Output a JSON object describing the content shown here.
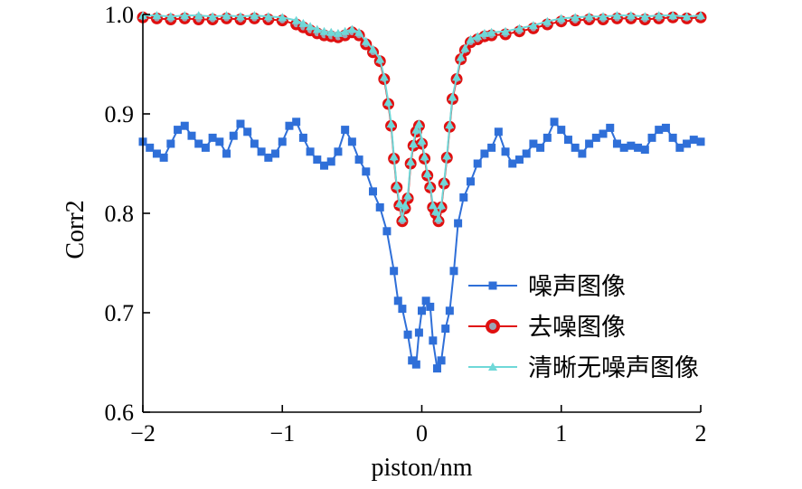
{
  "chart_data": {
    "type": "line",
    "xlabel": "piston/nm",
    "ylabel": "Corr2",
    "xlim": [
      -2,
      2
    ],
    "ylim": [
      0.6,
      1.0
    ],
    "xticks": [
      -2,
      -1,
      0,
      1,
      2
    ],
    "xtick_labels": [
      "−2",
      "−1",
      "0",
      "1",
      "2"
    ],
    "yticks": [
      0.6,
      0.7,
      0.8,
      0.9,
      1.0
    ],
    "ytick_labels": [
      "0.6",
      "0.7",
      "0.8",
      "0.9",
      "1.0"
    ],
    "grid": false,
    "legend_position": "lower-right",
    "series": [
      {
        "name": "噪声图像",
        "color": "#2f6fd8",
        "marker": "square",
        "points": [
          [
            -2.0,
            0.872
          ],
          [
            -1.95,
            0.866
          ],
          [
            -1.9,
            0.86
          ],
          [
            -1.85,
            0.856
          ],
          [
            -1.8,
            0.87
          ],
          [
            -1.75,
            0.884
          ],
          [
            -1.7,
            0.888
          ],
          [
            -1.65,
            0.878
          ],
          [
            -1.6,
            0.87
          ],
          [
            -1.55,
            0.866
          ],
          [
            -1.5,
            0.876
          ],
          [
            -1.45,
            0.872
          ],
          [
            -1.4,
            0.86
          ],
          [
            -1.35,
            0.878
          ],
          [
            -1.3,
            0.89
          ],
          [
            -1.25,
            0.882
          ],
          [
            -1.2,
            0.87
          ],
          [
            -1.15,
            0.862
          ],
          [
            -1.1,
            0.856
          ],
          [
            -1.05,
            0.86
          ],
          [
            -1.0,
            0.872
          ],
          [
            -0.95,
            0.888
          ],
          [
            -0.9,
            0.892
          ],
          [
            -0.85,
            0.876
          ],
          [
            -0.8,
            0.862
          ],
          [
            -0.75,
            0.854
          ],
          [
            -0.7,
            0.848
          ],
          [
            -0.65,
            0.852
          ],
          [
            -0.6,
            0.862
          ],
          [
            -0.55,
            0.884
          ],
          [
            -0.5,
            0.872
          ],
          [
            -0.45,
            0.854
          ],
          [
            -0.4,
            0.842
          ],
          [
            -0.35,
            0.822
          ],
          [
            -0.3,
            0.806
          ],
          [
            -0.25,
            0.782
          ],
          [
            -0.2,
            0.742
          ],
          [
            -0.17,
            0.712
          ],
          [
            -0.14,
            0.704
          ],
          [
            -0.1,
            0.678
          ],
          [
            -0.07,
            0.652
          ],
          [
            -0.04,
            0.648
          ],
          [
            -0.02,
            0.68
          ],
          [
            0.0,
            0.702
          ],
          [
            0.03,
            0.712
          ],
          [
            0.06,
            0.706
          ],
          [
            0.08,
            0.672
          ],
          [
            0.11,
            0.644
          ],
          [
            0.14,
            0.652
          ],
          [
            0.17,
            0.684
          ],
          [
            0.2,
            0.702
          ],
          [
            0.23,
            0.742
          ],
          [
            0.26,
            0.79
          ],
          [
            0.3,
            0.816
          ],
          [
            0.35,
            0.832
          ],
          [
            0.4,
            0.85
          ],
          [
            0.45,
            0.86
          ],
          [
            0.5,
            0.866
          ],
          [
            0.55,
            0.882
          ],
          [
            0.6,
            0.862
          ],
          [
            0.65,
            0.85
          ],
          [
            0.7,
            0.854
          ],
          [
            0.75,
            0.86
          ],
          [
            0.8,
            0.87
          ],
          [
            0.85,
            0.866
          ],
          [
            0.9,
            0.876
          ],
          [
            0.95,
            0.892
          ],
          [
            1.0,
            0.884
          ],
          [
            1.05,
            0.874
          ],
          [
            1.1,
            0.866
          ],
          [
            1.15,
            0.86
          ],
          [
            1.2,
            0.87
          ],
          [
            1.25,
            0.876
          ],
          [
            1.3,
            0.88
          ],
          [
            1.35,
            0.886
          ],
          [
            1.4,
            0.87
          ],
          [
            1.45,
            0.866
          ],
          [
            1.5,
            0.868
          ],
          [
            1.55,
            0.866
          ],
          [
            1.6,
            0.864
          ],
          [
            1.65,
            0.876
          ],
          [
            1.7,
            0.884
          ],
          [
            1.75,
            0.886
          ],
          [
            1.8,
            0.876
          ],
          [
            1.85,
            0.866
          ],
          [
            1.9,
            0.87
          ],
          [
            1.95,
            0.874
          ],
          [
            2.0,
            0.872
          ]
        ]
      },
      {
        "name": "去噪图像",
        "color": "#e01010",
        "marker": "circle",
        "points": [
          [
            -2.0,
            0.997
          ],
          [
            -1.9,
            0.996
          ],
          [
            -1.8,
            0.995
          ],
          [
            -1.7,
            0.996
          ],
          [
            -1.6,
            0.995
          ],
          [
            -1.5,
            0.995
          ],
          [
            -1.4,
            0.996
          ],
          [
            -1.3,
            0.995
          ],
          [
            -1.2,
            0.996
          ],
          [
            -1.1,
            0.995
          ],
          [
            -1.0,
            0.994
          ],
          [
            -0.9,
            0.99
          ],
          [
            -0.85,
            0.987
          ],
          [
            -0.8,
            0.984
          ],
          [
            -0.75,
            0.981
          ],
          [
            -0.7,
            0.979
          ],
          [
            -0.65,
            0.978
          ],
          [
            -0.6,
            0.977
          ],
          [
            -0.55,
            0.979
          ],
          [
            -0.5,
            0.982
          ],
          [
            -0.45,
            0.979
          ],
          [
            -0.4,
            0.97
          ],
          [
            -0.35,
            0.962
          ],
          [
            -0.3,
            0.953
          ],
          [
            -0.27,
            0.935
          ],
          [
            -0.24,
            0.91
          ],
          [
            -0.22,
            0.888
          ],
          [
            -0.2,
            0.855
          ],
          [
            -0.18,
            0.826
          ],
          [
            -0.16,
            0.808
          ],
          [
            -0.14,
            0.792
          ],
          [
            -0.12,
            0.805
          ],
          [
            -0.1,
            0.815
          ],
          [
            -0.08,
            0.85
          ],
          [
            -0.06,
            0.868
          ],
          [
            -0.04,
            0.882
          ],
          [
            -0.02,
            0.888
          ],
          [
            0.0,
            0.87
          ],
          [
            0.02,
            0.855
          ],
          [
            0.04,
            0.838
          ],
          [
            0.06,
            0.826
          ],
          [
            0.08,
            0.806
          ],
          [
            0.1,
            0.8
          ],
          [
            0.12,
            0.792
          ],
          [
            0.14,
            0.806
          ],
          [
            0.16,
            0.83
          ],
          [
            0.18,
            0.856
          ],
          [
            0.2,
            0.887
          ],
          [
            0.22,
            0.915
          ],
          [
            0.25,
            0.935
          ],
          [
            0.28,
            0.955
          ],
          [
            0.31,
            0.964
          ],
          [
            0.35,
            0.972
          ],
          [
            0.4,
            0.975
          ],
          [
            0.45,
            0.978
          ],
          [
            0.5,
            0.979
          ],
          [
            0.6,
            0.98
          ],
          [
            0.7,
            0.983
          ],
          [
            0.8,
            0.986
          ],
          [
            0.9,
            0.99
          ],
          [
            1.0,
            0.993
          ],
          [
            1.1,
            0.994
          ],
          [
            1.2,
            0.995
          ],
          [
            1.3,
            0.995
          ],
          [
            1.4,
            0.996
          ],
          [
            1.5,
            0.996
          ],
          [
            1.6,
            0.995
          ],
          [
            1.7,
            0.996
          ],
          [
            1.8,
            0.997
          ],
          [
            1.9,
            0.996
          ],
          [
            2.0,
            0.997
          ]
        ]
      },
      {
        "name": "清晰无噪声图像",
        "color": "#6fd8d8",
        "marker": "triangle",
        "points": [
          [
            -2.0,
            0.999
          ],
          [
            -1.9,
            0.999
          ],
          [
            -1.8,
            0.998
          ],
          [
            -1.7,
            0.999
          ],
          [
            -1.6,
            0.999
          ],
          [
            -1.5,
            0.998
          ],
          [
            -1.4,
            0.999
          ],
          [
            -1.3,
            0.998
          ],
          [
            -1.2,
            0.999
          ],
          [
            -1.1,
            0.998
          ],
          [
            -1.0,
            0.997
          ],
          [
            -0.9,
            0.994
          ],
          [
            -0.85,
            0.991
          ],
          [
            -0.8,
            0.988
          ],
          [
            -0.75,
            0.985
          ],
          [
            -0.7,
            0.983
          ],
          [
            -0.65,
            0.982
          ],
          [
            -0.6,
            0.981
          ],
          [
            -0.55,
            0.983
          ],
          [
            -0.5,
            0.985
          ],
          [
            -0.45,
            0.982
          ],
          [
            -0.4,
            0.973
          ],
          [
            -0.35,
            0.965
          ],
          [
            -0.3,
            0.955
          ],
          [
            -0.27,
            0.937
          ],
          [
            -0.24,
            0.912
          ],
          [
            -0.22,
            0.89
          ],
          [
            -0.2,
            0.857
          ],
          [
            -0.18,
            0.828
          ],
          [
            -0.16,
            0.81
          ],
          [
            -0.14,
            0.795
          ],
          [
            -0.12,
            0.808
          ],
          [
            -0.1,
            0.818
          ],
          [
            -0.08,
            0.852
          ],
          [
            -0.06,
            0.87
          ],
          [
            -0.04,
            0.884
          ],
          [
            -0.02,
            0.89
          ],
          [
            0.0,
            0.873
          ],
          [
            0.02,
            0.857
          ],
          [
            0.04,
            0.84
          ],
          [
            0.06,
            0.828
          ],
          [
            0.08,
            0.808
          ],
          [
            0.1,
            0.802
          ],
          [
            0.12,
            0.795
          ],
          [
            0.14,
            0.808
          ],
          [
            0.16,
            0.832
          ],
          [
            0.18,
            0.858
          ],
          [
            0.2,
            0.889
          ],
          [
            0.22,
            0.917
          ],
          [
            0.25,
            0.937
          ],
          [
            0.28,
            0.957
          ],
          [
            0.31,
            0.966
          ],
          [
            0.35,
            0.975
          ],
          [
            0.4,
            0.978
          ],
          [
            0.45,
            0.981
          ],
          [
            0.5,
            0.982
          ],
          [
            0.6,
            0.983
          ],
          [
            0.7,
            0.986
          ],
          [
            0.8,
            0.989
          ],
          [
            0.9,
            0.993
          ],
          [
            1.0,
            0.996
          ],
          [
            1.1,
            0.997
          ],
          [
            1.2,
            0.998
          ],
          [
            1.3,
            0.998
          ],
          [
            1.4,
            0.999
          ],
          [
            1.5,
            0.999
          ],
          [
            1.6,
            0.998
          ],
          [
            1.7,
            0.999
          ],
          [
            1.8,
            0.999
          ],
          [
            1.9,
            0.998
          ],
          [
            2.0,
            0.999
          ]
        ]
      }
    ]
  }
}
